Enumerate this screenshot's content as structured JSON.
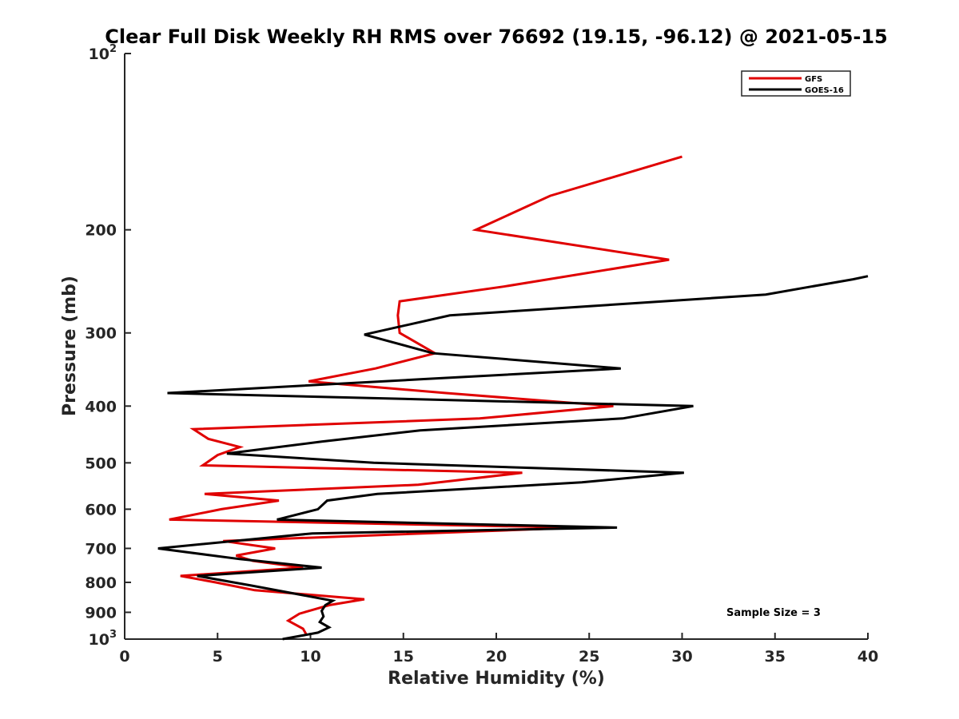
{
  "chart_data": {
    "type": "line",
    "title": "Clear Full Disk Weekly RH RMS over 76692 (19.15, -96.12) @ 2021-05-15",
    "xlabel": "Relative Humidity (%)",
    "ylabel": "Pressure (mb)",
    "xlim": [
      0,
      40
    ],
    "ylim": [
      100,
      1000
    ],
    "yscale": "log",
    "yreversed": true,
    "x_ticks": [
      0,
      5,
      10,
      15,
      20,
      25,
      30,
      35,
      40
    ],
    "x_tick_labels": [
      "0",
      "5",
      "10",
      "15",
      "20",
      "25",
      "30",
      "35",
      "40"
    ],
    "y_ticks": [
      {
        "value": 100,
        "label": "10",
        "sup": "2"
      },
      {
        "value": 200,
        "label": "200",
        "sup": ""
      },
      {
        "value": 300,
        "label": "300",
        "sup": ""
      },
      {
        "value": 400,
        "label": "400",
        "sup": ""
      },
      {
        "value": 500,
        "label": "500",
        "sup": ""
      },
      {
        "value": 600,
        "label": "600",
        "sup": ""
      },
      {
        "value": 700,
        "label": "700",
        "sup": ""
      },
      {
        "value": 800,
        "label": "800",
        "sup": ""
      },
      {
        "value": 900,
        "label": "900",
        "sup": ""
      },
      {
        "value": 1000,
        "label": "10",
        "sup": "3"
      }
    ],
    "legend_position": "top-right",
    "annotation": "Sample Size = 3",
    "series": [
      {
        "name": "GFS",
        "color": "#e00000",
        "points": [
          [
            30.0,
            150
          ],
          [
            22.9,
            175
          ],
          [
            18.9,
            200
          ],
          [
            29.3,
            225
          ],
          [
            20.4,
            250
          ],
          [
            14.8,
            265
          ],
          [
            14.7,
            280
          ],
          [
            14.8,
            300
          ],
          [
            16.7,
            325
          ],
          [
            13.5,
            345
          ],
          [
            9.9,
            363
          ],
          [
            17.3,
            380
          ],
          [
            26.3,
            400
          ],
          [
            19.1,
            420
          ],
          [
            3.7,
            438
          ],
          [
            4.5,
            455
          ],
          [
            6.2,
            470
          ],
          [
            5.0,
            485
          ],
          [
            4.2,
            505
          ],
          [
            21.4,
            520
          ],
          [
            15.8,
            545
          ],
          [
            4.3,
            565
          ],
          [
            8.3,
            580
          ],
          [
            5.2,
            600
          ],
          [
            2.4,
            625
          ],
          [
            24.4,
            645
          ],
          [
            5.3,
            680
          ],
          [
            8.1,
            700
          ],
          [
            6.0,
            720
          ],
          [
            6.9,
            735
          ],
          [
            9.6,
            755
          ],
          [
            3.0,
            780
          ],
          [
            4.9,
            800
          ],
          [
            7.0,
            825
          ],
          [
            12.9,
            855
          ],
          [
            11.0,
            875
          ],
          [
            9.4,
            905
          ],
          [
            8.8,
            930
          ],
          [
            9.6,
            960
          ],
          [
            9.8,
            985
          ]
        ]
      },
      {
        "name": "GOES-16",
        "color": "#000000",
        "points": [
          [
            40.0,
            240
          ],
          [
            39.2,
            243
          ],
          [
            34.5,
            258
          ],
          [
            17.5,
            280
          ],
          [
            12.9,
            302
          ],
          [
            16.6,
            325
          ],
          [
            26.7,
            345
          ],
          [
            15.9,
            360
          ],
          [
            2.3,
            380
          ],
          [
            30.6,
            400
          ],
          [
            26.8,
            420
          ],
          [
            15.9,
            440
          ],
          [
            10.6,
            460
          ],
          [
            5.5,
            482
          ],
          [
            13.4,
            500
          ],
          [
            30.1,
            520
          ],
          [
            24.6,
            540
          ],
          [
            13.6,
            565
          ],
          [
            10.9,
            580
          ],
          [
            10.4,
            600
          ],
          [
            8.2,
            625
          ],
          [
            26.5,
            645
          ],
          [
            10.1,
            660
          ],
          [
            1.8,
            700
          ],
          [
            6.2,
            730
          ],
          [
            10.6,
            755
          ],
          [
            3.9,
            780
          ],
          [
            6.8,
            810
          ],
          [
            11.2,
            860
          ],
          [
            10.8,
            875
          ],
          [
            10.6,
            895
          ],
          [
            10.7,
            915
          ],
          [
            10.5,
            935
          ],
          [
            11.0,
            955
          ],
          [
            10.4,
            975
          ],
          [
            8.5,
            1000
          ]
        ]
      }
    ]
  }
}
